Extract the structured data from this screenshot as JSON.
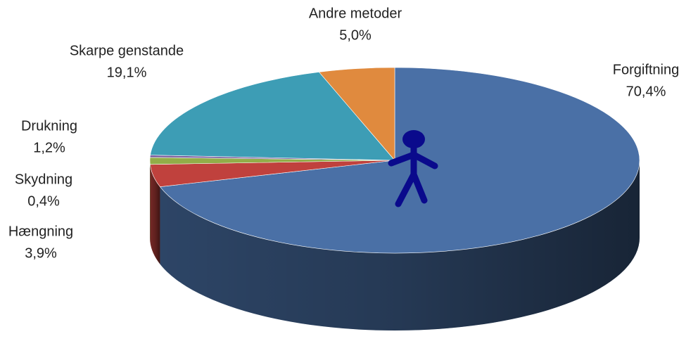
{
  "chart_data": {
    "type": "pie",
    "categories": [
      "Forgiftning",
      "Hængning",
      "Drukning",
      "Skydning",
      "Skarpe genstande",
      "Andre metoder"
    ],
    "values": [
      70.4,
      3.9,
      1.2,
      0.4,
      19.1,
      5.0
    ],
    "value_labels": [
      "70,4%",
      "3,9%",
      "1,2%",
      "0,4%",
      "19,1%",
      "5,0%"
    ],
    "colors": [
      "#4a70a6",
      "#c0413d",
      "#92ad48",
      "#7a5c9e",
      "#3d9db5",
      "#e08a3e"
    ]
  }
}
